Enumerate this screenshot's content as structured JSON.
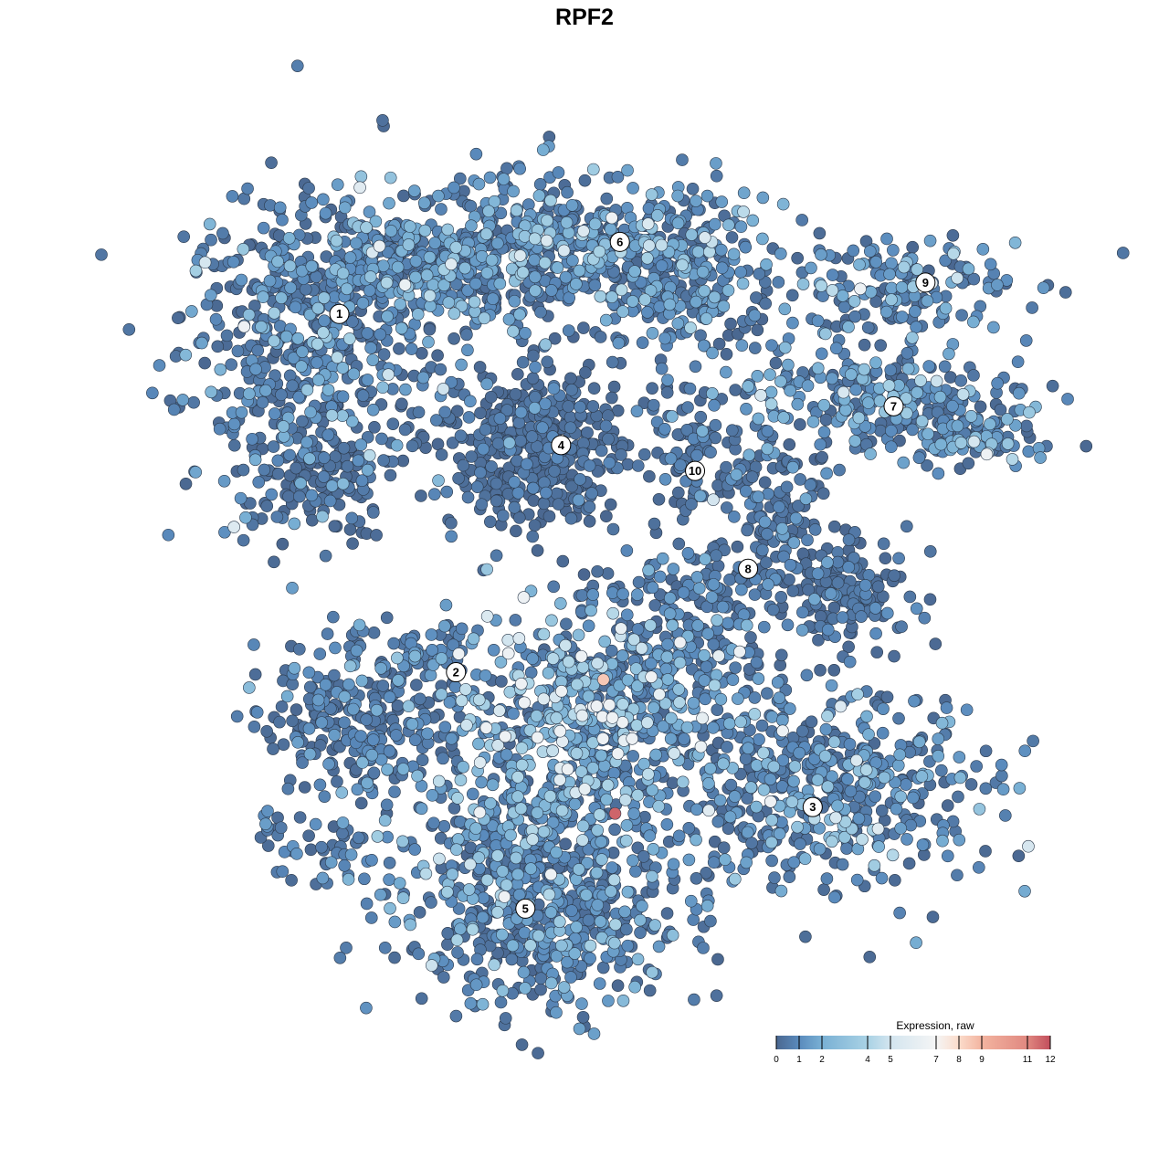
{
  "chart_data": {
    "type": "scatter",
    "title": "RPF2",
    "xlabel": "",
    "ylabel": "",
    "xlim": [
      -45,
      45
    ],
    "ylim": [
      -45,
      45
    ],
    "grid": false,
    "axes_visible": false,
    "legend": {
      "title": "Expression, raw",
      "placement": "bottom-right",
      "type": "colorbar",
      "range": [
        0,
        12
      ],
      "ticks": [
        0,
        1,
        2,
        4,
        5,
        7,
        8,
        9,
        11,
        12
      ],
      "tick_labels": [
        "0",
        "1",
        "2",
        "4",
        "5",
        "7",
        "8",
        "9",
        "11",
        "12"
      ],
      "color_stops": [
        {
          "value": 0,
          "color": "#4a6790"
        },
        {
          "value": 1,
          "color": "#5a8bbd"
        },
        {
          "value": 2,
          "color": "#79b0d4"
        },
        {
          "value": 4,
          "color": "#a9d2e5"
        },
        {
          "value": 5,
          "color": "#d3e5ef"
        },
        {
          "value": 7,
          "color": "#f5f5f5"
        },
        {
          "value": 8,
          "color": "#fbdccb"
        },
        {
          "value": 9,
          "color": "#f3b4a0"
        },
        {
          "value": 11,
          "color": "#e08880"
        },
        {
          "value": 12,
          "color": "#c24e5c"
        }
      ]
    },
    "point_stroke_color": "#2c3a4c",
    "cluster_labels": [
      {
        "label": "1",
        "x": -27.8,
        "y": 29.3
      },
      {
        "label": "2",
        "x": -15.7,
        "y": -9.5
      },
      {
        "label": "3",
        "x": 21.3,
        "y": -24.1
      },
      {
        "label": "4",
        "x": -4.8,
        "y": 15.1
      },
      {
        "label": "5",
        "x": -8.5,
        "y": -35.1
      },
      {
        "label": "6",
        "x": 1.3,
        "y": 37.1
      },
      {
        "label": "7",
        "x": 29.7,
        "y": 19.3
      },
      {
        "label": "8",
        "x": 14.6,
        "y": 1.7
      },
      {
        "label": "9",
        "x": 33.0,
        "y": 32.7
      },
      {
        "label": "10",
        "x": 9.1,
        "y": 12.3
      }
    ],
    "cell_groups": [
      {
        "cluster": "1",
        "x": -30.8,
        "y": 25.7,
        "sx": 6.5,
        "sy": 8.0,
        "n": 480,
        "mean_expression": 1.0
      },
      {
        "cluster": "1",
        "x": -20.4,
        "y": 34.6,
        "sx": 8.0,
        "sy": 4.0,
        "n": 360,
        "mean_expression": 1.2
      },
      {
        "cluster": "1",
        "x": -29.8,
        "y": 10.9,
        "sx": 3.5,
        "sy": 3.0,
        "n": 120,
        "mean_expression": 0.4
      },
      {
        "cluster": "6",
        "x": -2.4,
        "y": 36.6,
        "sx": 9.0,
        "sy": 4.0,
        "n": 440,
        "mean_expression": 1.3
      },
      {
        "cluster": "6",
        "x": 9.0,
        "y": 31.6,
        "sx": 4.5,
        "sy": 3.5,
        "n": 150,
        "mean_expression": 1.0
      },
      {
        "cluster": "4",
        "x": -8.0,
        "y": 14.8,
        "sx": 4.6,
        "sy": 4.4,
        "n": 400,
        "mean_expression": 0.3
      },
      {
        "cluster": "10",
        "x": 9.0,
        "y": 13.8,
        "sx": 2.6,
        "sy": 4.2,
        "n": 100,
        "mean_expression": 0.4
      },
      {
        "cluster": "9",
        "x": 30.8,
        "y": 32.6,
        "sx": 6.0,
        "sy": 2.6,
        "n": 150,
        "mean_expression": 1.1
      },
      {
        "cluster": "7",
        "x": 27.9,
        "y": 20.8,
        "sx": 8.0,
        "sy": 2.8,
        "n": 250,
        "mean_expression": 1.2
      },
      {
        "cluster": "7",
        "x": 37.4,
        "y": 15.8,
        "sx": 3.6,
        "sy": 1.8,
        "n": 80,
        "mean_expression": 1.3
      },
      {
        "cluster": "8",
        "x": 17.5,
        "y": 7.9,
        "sx": 2.6,
        "sy": 4.6,
        "n": 120,
        "mean_expression": 0.6
      },
      {
        "cluster": "8",
        "x": 24.1,
        "y": -1.0,
        "sx": 3.6,
        "sy": 3.0,
        "n": 150,
        "mean_expression": 0.5
      },
      {
        "cluster": "8",
        "x": 7.1,
        "y": 0.0,
        "sx": 5.5,
        "sy": 1.8,
        "n": 80,
        "mean_expression": 0.7
      },
      {
        "cluster": "2",
        "x": -25.1,
        "y": -14.8,
        "sx": 5.2,
        "sy": 4.2,
        "n": 250,
        "mean_expression": 0.7
      },
      {
        "cluster": "2",
        "x": -19.4,
        "y": -7.9,
        "sx": 3.6,
        "sy": 1.8,
        "n": 60,
        "mean_expression": 0.8
      },
      {
        "cluster": "2",
        "x": -28.9,
        "y": -28.7,
        "sx": 3.0,
        "sy": 1.8,
        "n": 40,
        "mean_expression": 0.7
      },
      {
        "cluster": "2",
        "x": -34.7,
        "y": -26.2,
        "sx": 1.0,
        "sy": 1.0,
        "n": 10,
        "mean_expression": 0.8
      },
      {
        "cluster": "5",
        "x": -2.4,
        "y": -13.8,
        "sx": 6.8,
        "sy": 5.4,
        "n": 400,
        "mean_expression": 2.6
      },
      {
        "cluster": "3",
        "x": 6.2,
        "y": -8.9,
        "sx": 5.0,
        "sy": 4.5,
        "n": 200,
        "mean_expression": 0.8
      },
      {
        "cluster": "3",
        "x": 22.3,
        "y": -21.8,
        "sx": 8.8,
        "sy": 5.5,
        "n": 500,
        "mean_expression": 1.1
      },
      {
        "cluster": "5",
        "x": -6.2,
        "y": -35.6,
        "sx": 7.8,
        "sy": 5.2,
        "n": 500,
        "mean_expression": 1.1
      },
      {
        "cluster": "5",
        "x": -8.0,
        "y": -25.7,
        "sx": 5.6,
        "sy": 3.8,
        "n": 250,
        "mean_expression": 1.3
      }
    ],
    "notable_points": [
      {
        "x": -0.4,
        "y": -10.3,
        "expression": 8.5
      },
      {
        "x": 0.8,
        "y": -24.8,
        "expression": 11.6
      },
      {
        "x": 5.4,
        "y": -11.9,
        "expression": 6.2
      },
      {
        "x": -2.6,
        "y": -14.2,
        "expression": 6.0
      },
      {
        "x": 24.2,
        "y": -13.2,
        "expression": 5.5
      }
    ]
  }
}
